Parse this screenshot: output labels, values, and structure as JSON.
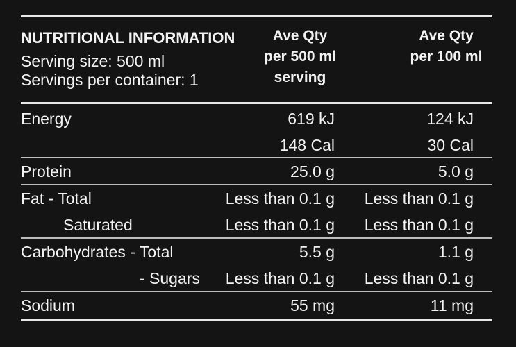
{
  "header": {
    "title": "NUTRITIONAL INFORMATION",
    "serving_size": "Serving size: 500 ml",
    "servings_per_container": "Servings per container: 1",
    "col2": [
      "Ave Qty",
      "per 500 ml",
      "serving"
    ],
    "col3": [
      "Ave Qty",
      "per 100 ml"
    ]
  },
  "rows": [
    {
      "label": "Energy",
      "serving": "619 kJ",
      "per100": "124 kJ"
    },
    {
      "label": "",
      "serving": "148 Cal",
      "per100": "30 Cal"
    },
    {
      "label": "Protein",
      "serving": "25.0 g",
      "per100": "5.0 g"
    },
    {
      "label": "Fat - Total",
      "serving": "Less than 0.1 g",
      "per100": "Less than 0.1 g"
    },
    {
      "label": "Saturated",
      "serving": "Less than 0.1 g",
      "per100": "Less than 0.1 g"
    },
    {
      "label": "Carbohydrates - Total",
      "serving": "5.5 g",
      "per100": "1.1 g"
    },
    {
      "label": "- Sugars",
      "serving": "Less than 0.1 g",
      "per100": "Less than 0.1 g"
    },
    {
      "label": "Sodium",
      "serving": "55 mg",
      "per100": "11 mg"
    }
  ]
}
